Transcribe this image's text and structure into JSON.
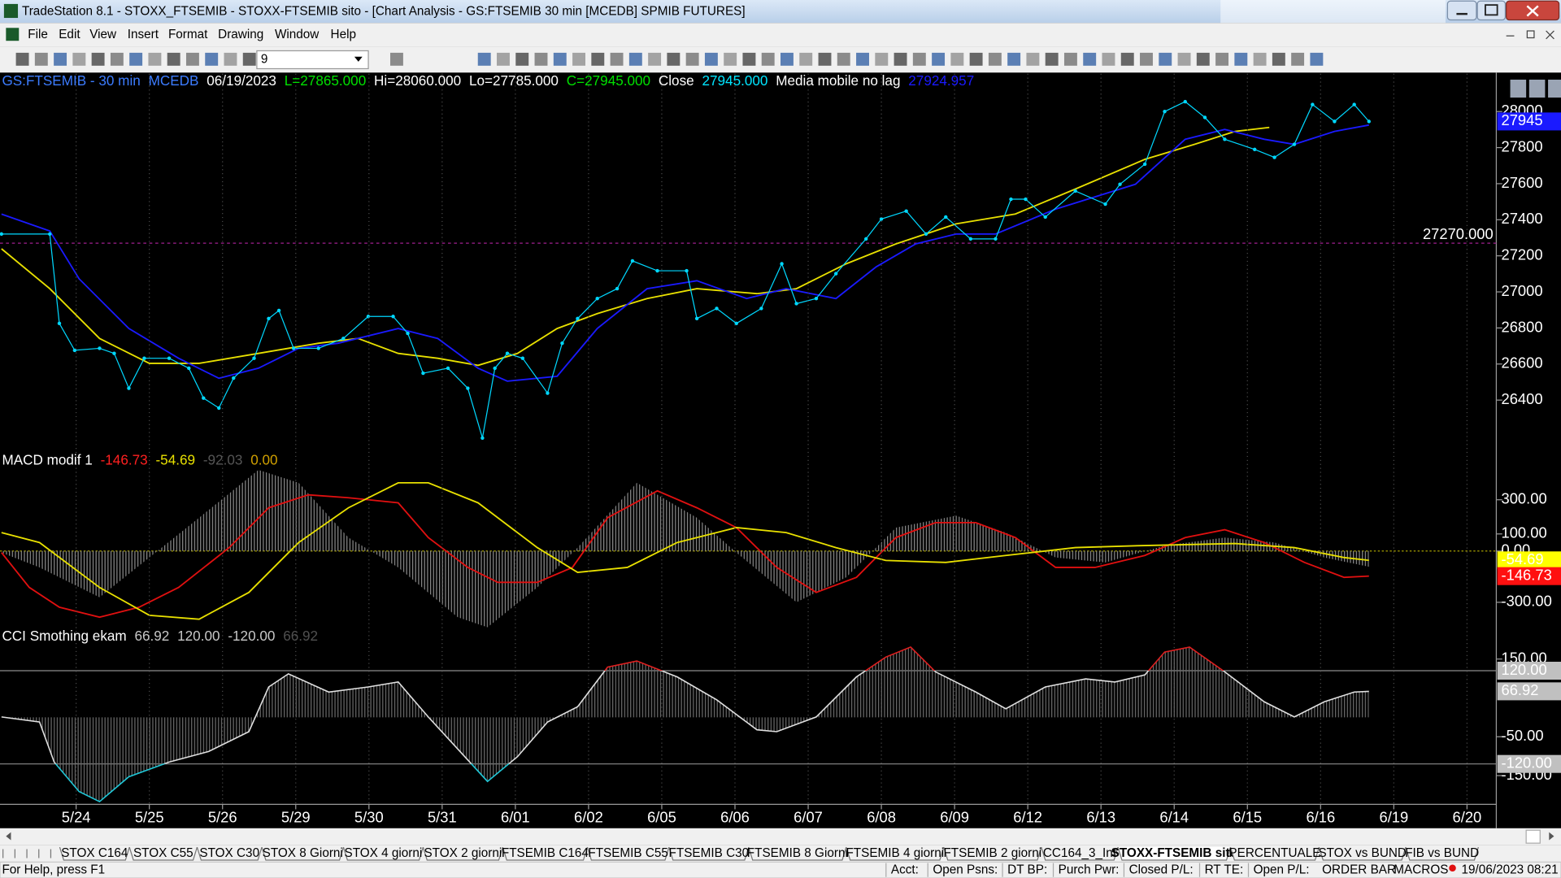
{
  "window": {
    "title": "TradeStation 8.1 - STOXX_FTSEMIB - STOXX-FTSEMIB sito - [Chart Analysis - GS:FTSEMIB  30 min  [MCEDB] SPMIB FUTURES]",
    "menu": [
      "File",
      "Edit",
      "View",
      "Insert",
      "Format",
      "Drawing",
      "Window",
      "Help"
    ]
  },
  "toolbar": {
    "interval": "9"
  },
  "chart_data": [
    {
      "type": "line",
      "header": [
        {
          "text": "GS:FTSEMIB - 30 min",
          "color": "#3c7cff"
        },
        {
          "text": "MCEDB",
          "color": "#3c7cff"
        },
        {
          "text": "06/19/2023",
          "color": "#ffffff"
        },
        {
          "text": "L=27865.000",
          "color": "#00e000"
        },
        {
          "text": "Hi=28060.000",
          "color": "#ffffff"
        },
        {
          "text": "Lo=27785.000",
          "color": "#ffffff"
        },
        {
          "text": "C=27945.000",
          "color": "#00e000"
        },
        {
          "text": "Close",
          "color": "#ffffff"
        },
        {
          "text": "27945.000",
          "color": "#00e5ff"
        },
        {
          "text": "Media mobile no lag",
          "color": "#ffffff"
        },
        {
          "text": "27924.957",
          "color": "#1a1aff"
        }
      ],
      "xlim": [
        -0.54,
        19.9
      ],
      "ylim": [
        26107,
        28210
      ],
      "yticks": [
        28000,
        27800,
        27600,
        27400,
        27200,
        27000,
        26800,
        26600,
        26400
      ],
      "series": [
        {
          "style": "line",
          "color": "#e8e000",
          "x": [
            -0.52,
            0.14,
            0.82,
            1.5,
            2.18,
            2.99,
            3.81,
            4.35,
            4.9,
            5.44,
            5.99,
            6.53,
            7.07,
            7.62,
            8.3,
            8.98,
            9.8,
            10.34,
            11.02,
            11.7,
            12.52,
            13.33,
            14.15,
            15.1,
            15.78,
            16.33,
            16.8
          ],
          "values": [
            27239,
            27018,
            26742,
            26604,
            26604,
            26659,
            26715,
            26742,
            26659,
            26632,
            26593,
            26659,
            26797,
            26880,
            26963,
            27018,
            26990,
            27018,
            27156,
            27266,
            27377,
            27432,
            27570,
            27735,
            27818,
            27890,
            27912
          ]
        },
        {
          "style": "line",
          "color": "#1a1aff",
          "x": [
            -0.52,
            0.14,
            0.54,
            1.22,
            1.9,
            2.45,
            2.99,
            3.54,
            4.08,
            4.9,
            5.44,
            5.99,
            6.39,
            7.07,
            7.62,
            8.3,
            8.98,
            9.66,
            10.2,
            10.88,
            11.43,
            11.97,
            12.52,
            13.06,
            13.88,
            14.97,
            15.65,
            16.19,
            16.73,
            17.14,
            17.69,
            18.16
          ],
          "values": [
            27431,
            27338,
            27073,
            26797,
            26632,
            26521,
            26577,
            26687,
            26715,
            26797,
            26742,
            26577,
            26505,
            26532,
            26797,
            27018,
            27062,
            26963,
            27018,
            26963,
            27139,
            27266,
            27321,
            27321,
            27459,
            27597,
            27846,
            27901,
            27846,
            27818,
            27890,
            27924.957
          ]
        },
        {
          "style": "dots",
          "color": "#00d8ff",
          "x": [
            -0.52,
            0.14,
            0.27,
            0.48,
            0.82,
            1.02,
            1.22,
            1.43,
            1.77,
            2.04,
            2.24,
            2.45,
            2.65,
            2.93,
            3.13,
            3.27,
            3.47,
            3.81,
            4.15,
            4.49,
            4.83,
            5.03,
            5.24,
            5.58,
            5.85,
            6.05,
            6.22,
            6.39,
            6.6,
            6.94,
            7.14,
            7.35,
            7.62,
            7.89,
            8.1,
            8.44,
            8.84,
            8.98,
            9.25,
            9.52,
            9.86,
            10.14,
            10.34,
            10.61,
            10.88,
            11.29,
            11.5,
            11.84,
            12.11,
            12.38,
            12.72,
            13.06,
            13.27,
            13.47,
            13.74,
            14.15,
            14.56,
            14.76,
            15.1,
            15.37,
            15.65,
            15.92,
            16.19,
            16.6,
            16.87,
            17.14,
            17.39,
            17.69,
            17.96,
            18.16
          ],
          "values": [
            27321,
            27321,
            26825,
            26676,
            26687,
            26659,
            26466,
            26632,
            26632,
            26577,
            26411,
            26356,
            26522,
            26632,
            26852,
            26897,
            26687,
            26687,
            26742,
            26864,
            26864,
            26770,
            26549,
            26577,
            26466,
            26190,
            26577,
            26659,
            26632,
            26439,
            26715,
            26852,
            26963,
            27018,
            27172,
            27117,
            27117,
            26852,
            26908,
            26825,
            26908,
            27156,
            26935,
            26963,
            27101,
            27294,
            27404,
            27448,
            27321,
            27415,
            27294,
            27294,
            27514,
            27514,
            27415,
            27559,
            27487,
            27597,
            27708,
            28000,
            28055,
            27967,
            27846,
            27790,
            27746,
            27818,
            28039,
            27945,
            28039,
            27945
          ]
        }
      ],
      "reference_line": {
        "value": 27270,
        "label": "27270.000",
        "color": "#a0208f"
      },
      "markers": [
        {
          "value": 27945,
          "label": "27945",
          "color": "#1a1aff",
          "text_color": "#ffffff"
        }
      ]
    },
    {
      "type": "line",
      "header": [
        {
          "text": "MACD modif 1",
          "color": "#ffffff"
        },
        {
          "text": "-146.73",
          "color": "#ff2020"
        },
        {
          "text": "-54.69",
          "color": "#e8e000"
        },
        {
          "text": "-92.03",
          "color": "#555555"
        },
        {
          "text": "0.00",
          "color": "#d0a000"
        }
      ],
      "xlim": [
        -0.54,
        19.9
      ],
      "ylim": [
        -457,
        574
      ],
      "yticks": [
        {
          "value": 300,
          "label": "300.00"
        },
        {
          "value": 100,
          "label": "100.00"
        },
        {
          "value": 0,
          "label": "0.00"
        },
        {
          "value": -300,
          "label": "-300.00"
        }
      ],
      "level_lines": [
        {
          "value": 0,
          "color": "#b8b000"
        }
      ],
      "series": [
        {
          "style": "histogram",
          "color": "#8a8a8a",
          "x": [
            -0.52,
            0,
            0.82,
            1.5,
            2.18,
            2.99,
            3.54,
            4.22,
            4.9,
            5.71,
            6.12,
            6.8,
            7.35,
            8.16,
            8.98,
            9.52,
            10.34,
            11.02,
            11.7,
            12.52,
            13.2,
            13.88,
            14.56,
            15.37,
            16.19,
            16.87,
            17.55,
            18.16
          ],
          "values": [
            -9,
            -96,
            -271,
            -38,
            195,
            475,
            399,
            79,
            -96,
            -387,
            -446,
            -213,
            20,
            399,
            195,
            -9,
            -300,
            -154,
            137,
            207,
            108,
            -38,
            -67,
            32,
            79,
            50,
            -38,
            -92.03
          ]
        },
        {
          "style": "line",
          "color": "#e01010",
          "x": [
            -0.52,
            -0.14,
            0.27,
            0.82,
            1.36,
            1.9,
            2.59,
            3.13,
            3.67,
            4.22,
            4.9,
            5.31,
            5.85,
            6.26,
            6.8,
            7.28,
            7.76,
            8.44,
            8.98,
            9.52,
            10.07,
            10.61,
            11.16,
            11.7,
            12.24,
            12.79,
            13.33,
            13.88,
            14.42,
            15.1,
            15.65,
            16.19,
            16.73,
            17.28,
            17.82,
            18.16
          ],
          "values": [
            -9,
            -213,
            -329,
            -387,
            -329,
            -213,
            20,
            253,
            329,
            312,
            282,
            79,
            -96,
            -183,
            -183,
            -96,
            195,
            352,
            253,
            137,
            -96,
            -242,
            -154,
            79,
            166,
            166,
            79,
            -96,
            -96,
            -26,
            79,
            125,
            50,
            -67,
            -154,
            -146.73
          ]
        },
        {
          "style": "line",
          "color": "#e8e000",
          "x": [
            -0.52,
            0,
            0.82,
            1.5,
            2.18,
            2.86,
            3.54,
            4.22,
            4.9,
            5.31,
            5.99,
            6.8,
            7.35,
            8.03,
            8.71,
            9.52,
            10.2,
            10.88,
            11.56,
            12.38,
            13.2,
            14.15,
            15.1,
            16.33,
            17.14,
            17.82,
            18.16
          ],
          "values": [
            108,
            50,
            -213,
            -376,
            -399,
            -242,
            50,
            253,
            399,
            399,
            282,
            20,
            -125,
            -96,
            50,
            137,
            108,
            20,
            -55,
            -67,
            -26,
            20,
            32,
            44,
            20,
            -38,
            -54.69
          ]
        }
      ],
      "markers": [
        {
          "value": -54.69,
          "label": "-54.69",
          "color": "#ffff00"
        },
        {
          "value": -146.73,
          "label": "-146.73",
          "color": "#ff1010"
        }
      ]
    },
    {
      "type": "line",
      "header": [
        {
          "text": "CCI Smothing ekam",
          "color": "#ffffff"
        },
        {
          "text": "66.92",
          "color": "#c8c8c8"
        },
        {
          "text": "120.00",
          "color": "#c8c8c8"
        },
        {
          "text": "-120.00",
          "color": "#c8c8c8"
        },
        {
          "text": "66.92",
          "color": "#505050"
        }
      ],
      "xlim": [
        -0.54,
        19.9
      ],
      "ylim": [
        -224,
        227
      ],
      "yticks": [
        {
          "value": 150,
          "label": "150.00"
        },
        {
          "value": -50,
          "label": "-50.00"
        },
        {
          "value": -150,
          "label": "-150.00"
        }
      ],
      "level_lines": [
        {
          "value": 120,
          "color": "#8c8c8c"
        },
        {
          "value": -120,
          "color": "#8c8c8c"
        }
      ],
      "series": [
        {
          "style": "cci",
          "color": "#e0e0e0",
          "high_color": "#e02020",
          "low_color": "#20c8d8",
          "histogram_color": "#6a6a6a",
          "x": [
            -0.52,
            0,
            0.2,
            0.54,
            0.82,
            1.22,
            1.77,
            2.31,
            2.86,
            3.13,
            3.4,
            3.95,
            4.49,
            4.9,
            5.31,
            5.71,
            6.12,
            6.53,
            6.94,
            7.35,
            7.76,
            8.16,
            8.71,
            9.25,
            9.8,
            10.07,
            10.61,
            11.16,
            11.56,
            11.9,
            12.24,
            12.79,
            13.2,
            13.74,
            14.29,
            14.69,
            15.1,
            15.37,
            15.71,
            16.19,
            16.73,
            17.14,
            17.55,
            17.96,
            18.16
          ],
          "values": [
            1,
            -12,
            -115,
            -191,
            -217,
            -153,
            -115,
            -88,
            -37,
            78,
            112,
            65,
            78,
            91,
            1,
            -81,
            -165,
            -101,
            -12,
            27,
            129,
            145,
            104,
            45,
            -32,
            -37,
            1,
            104,
            155,
            181,
            117,
            65,
            22,
            78,
            99,
            91,
            109,
            168,
            181,
            117,
            40,
            1,
            40,
            65,
            66.92
          ]
        }
      ],
      "markers": [
        {
          "value": 120,
          "label": "120.00",
          "color": "#c0c0c0"
        },
        {
          "value": 66.92,
          "label": "66.92",
          "color": "#c0c0c0"
        },
        {
          "value": -120,
          "label": "-120.00",
          "color": "#c0c0c0"
        }
      ],
      "xticks": [
        {
          "value": 0.5,
          "label": "5/24"
        },
        {
          "value": 1.5,
          "label": "5/25"
        },
        {
          "value": 2.5,
          "label": "5/26"
        },
        {
          "value": 3.5,
          "label": "5/29"
        },
        {
          "value": 4.5,
          "label": "5/30"
        },
        {
          "value": 5.5,
          "label": "5/31"
        },
        {
          "value": 6.5,
          "label": "6/01"
        },
        {
          "value": 7.5,
          "label": "6/02"
        },
        {
          "value": 8.5,
          "label": "6/05"
        },
        {
          "value": 9.5,
          "label": "6/06"
        },
        {
          "value": 10.5,
          "label": "6/07"
        },
        {
          "value": 11.5,
          "label": "6/08"
        },
        {
          "value": 12.5,
          "label": "6/09"
        },
        {
          "value": 13.5,
          "label": "6/12"
        },
        {
          "value": 14.5,
          "label": "6/13"
        },
        {
          "value": 15.5,
          "label": "6/14"
        },
        {
          "value": 16.5,
          "label": "6/15"
        },
        {
          "value": 17.5,
          "label": "6/16"
        },
        {
          "value": 18.5,
          "label": "6/19"
        },
        {
          "value": 19.5,
          "label": "6/20"
        }
      ]
    }
  ],
  "tabs": [
    "STOX C164",
    "STOX C55",
    "STOX  C30",
    "STOX  8 Giorni",
    "STOX 4 giorni",
    "STOX  2 giorni",
    "FTSEMIB C164",
    "FTSEMIB C55",
    "FTSEMIB C30",
    "FTSEMIB  8 Giorni",
    "FTSEMIB  4 giorni",
    "FTSEMIB  2 giorni",
    "CC164_3_Int",
    "STOXX-FTSEMIB sito",
    "PERCENTUALE",
    "STOX vs BUND",
    "FIB vs BUND"
  ],
  "active_tab": 13,
  "status_bar": {
    "help": "For Help, press F1",
    "fields": [
      "Acct:",
      "Open Psns:",
      "DT BP:",
      "Purch Pwr:",
      "Closed P/L:",
      "RT TE:",
      "Open P/L:"
    ],
    "order_bar": "ORDER BAR",
    "macros": "MACROS",
    "datetime": "19/06/2023 08:21"
  }
}
